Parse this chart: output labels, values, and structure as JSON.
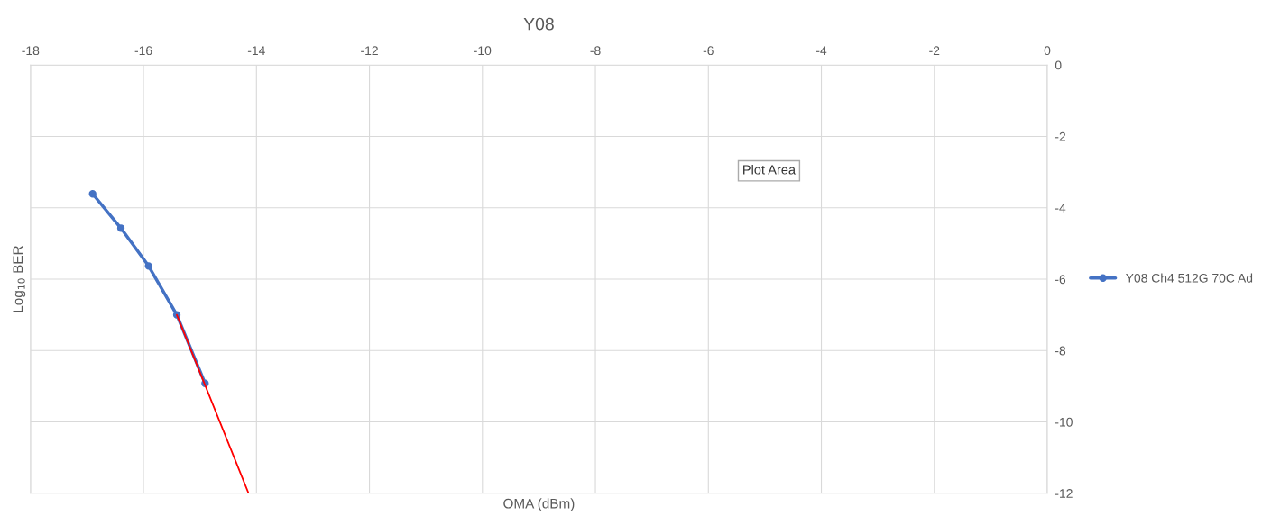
{
  "chart_data": {
    "type": "line",
    "title": "Y08",
    "xlabel": "OMA (dBm)",
    "ylabel": "Log$_{10}$ BER",
    "series": [
      {
        "name": "Y08 Ch4 512G 70C Ad",
        "color": "#4472c4",
        "x": [
          -16.9,
          -16.4,
          -15.91,
          -15.41,
          -14.91
        ],
        "values": [
          -3.61,
          -4.57,
          -5.63,
          -7.0,
          -8.92
        ],
        "marker": "circle"
      },
      {
        "color": "#ff0000",
        "x": [
          -15.41,
          -14.14
        ],
        "values": [
          -7.0,
          -12.0
        ],
        "marker": "none"
      }
    ],
    "xlim": [
      -18,
      0
    ],
    "xticks": [
      -18,
      -16,
      -14,
      -12,
      -10,
      -8,
      -6,
      -4,
      -2,
      0
    ],
    "ylim": [
      -12,
      0
    ],
    "yticks": [
      0,
      -2,
      -4,
      -6,
      -8,
      -10,
      -12
    ],
    "grid": true,
    "legend": "right",
    "annotations": [
      "Plot Area"
    ]
  }
}
